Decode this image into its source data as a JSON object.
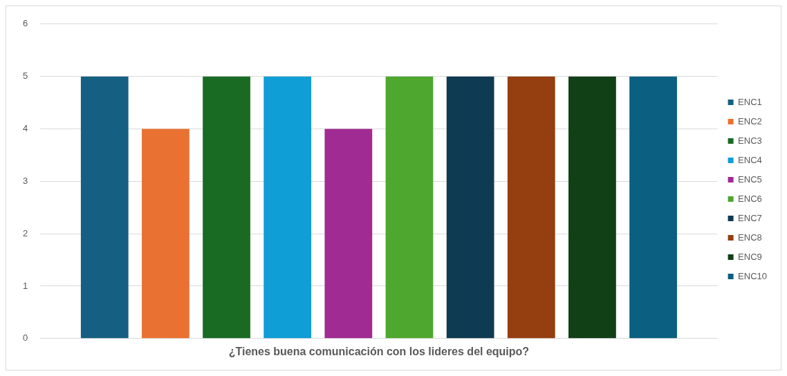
{
  "chart_data": {
    "type": "bar",
    "categories": [
      "¿Tienes buena comunicación con los lideres del equipo?"
    ],
    "series": [
      {
        "name": "ENC1",
        "color": "#156082",
        "values": [
          5
        ]
      },
      {
        "name": "ENC2",
        "color": "#e97132",
        "values": [
          4
        ]
      },
      {
        "name": "ENC3",
        "color": "#196b24",
        "values": [
          5
        ]
      },
      {
        "name": "ENC4",
        "color": "#0f9ed5",
        "values": [
          5
        ]
      },
      {
        "name": "ENC5",
        "color": "#a02b93",
        "values": [
          4
        ]
      },
      {
        "name": "ENC6",
        "color": "#4ea72e",
        "values": [
          5
        ]
      },
      {
        "name": "ENC7",
        "color": "#0e3a52",
        "values": [
          5
        ]
      },
      {
        "name": "ENC8",
        "color": "#953e0f",
        "values": [
          5
        ]
      },
      {
        "name": "ENC9",
        "color": "#113f16",
        "values": [
          5
        ]
      },
      {
        "name": "ENC10",
        "color": "#0b5f80",
        "values": [
          5
        ]
      }
    ],
    "ylim": [
      0,
      6
    ],
    "yticks": [
      0,
      1,
      2,
      3,
      4,
      5,
      6
    ],
    "grid": "y",
    "legend": "right"
  }
}
